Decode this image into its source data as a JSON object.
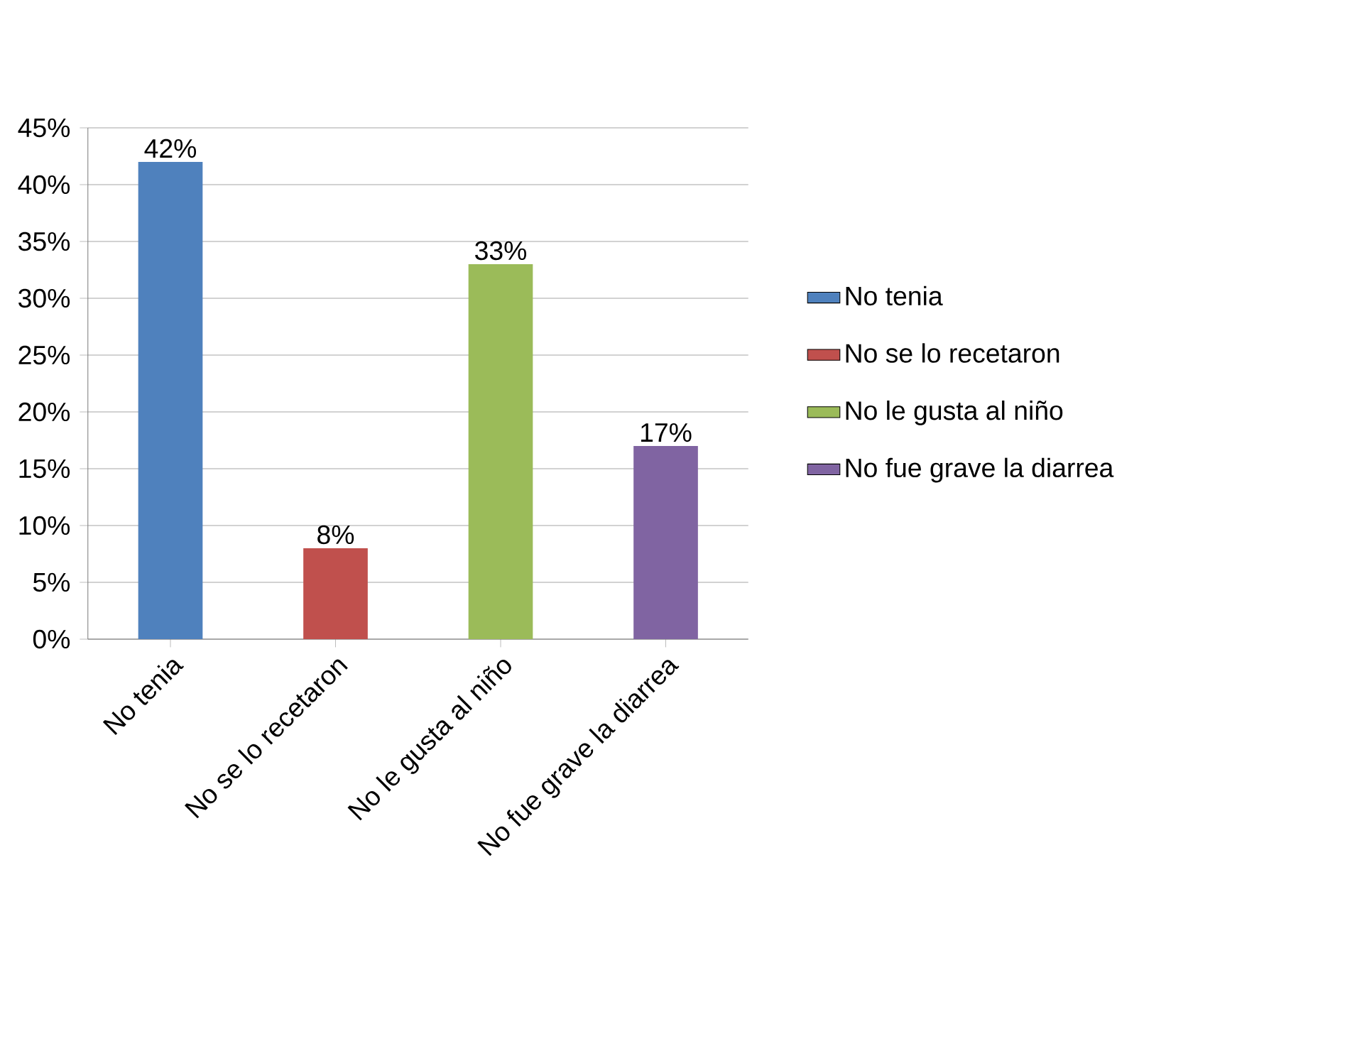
{
  "chart_data": {
    "type": "bar",
    "categories": [
      "No tenia",
      "No se lo recetaron",
      "No le gusta al niño",
      "No fue grave la diarrea"
    ],
    "series": [
      {
        "name": "No tenia",
        "color": "#4f81bd",
        "values": [
          42,
          null,
          null,
          null
        ],
        "value_labels": [
          "42%",
          null,
          null,
          null
        ]
      },
      {
        "name": "No se lo recetaron",
        "color": "#c0504d",
        "values": [
          null,
          8,
          null,
          null
        ],
        "value_labels": [
          null,
          "8%",
          null,
          null
        ]
      },
      {
        "name": "No le gusta al niño",
        "color": "#9bbb59",
        "values": [
          null,
          null,
          33,
          null
        ],
        "value_labels": [
          null,
          null,
          "33%",
          null
        ]
      },
      {
        "name": "No fue grave la diarrea",
        "color": "#8064a2",
        "values": [
          null,
          null,
          null,
          17
        ],
        "value_labels": [
          null,
          null,
          null,
          "17%"
        ]
      }
    ],
    "ylim": [
      0,
      45
    ],
    "yticks": [
      {
        "value": 0,
        "label": "0%"
      },
      {
        "value": 5,
        "label": "5%"
      },
      {
        "value": 10,
        "label": "10%"
      },
      {
        "value": 15,
        "label": "15%"
      },
      {
        "value": 20,
        "label": "20%"
      },
      {
        "value": 25,
        "label": "25%"
      },
      {
        "value": 30,
        "label": "30%"
      },
      {
        "value": 35,
        "label": "35%"
      },
      {
        "value": 40,
        "label": "40%"
      },
      {
        "value": 45,
        "label": "45%"
      }
    ],
    "grid": "y",
    "legend": "right"
  }
}
